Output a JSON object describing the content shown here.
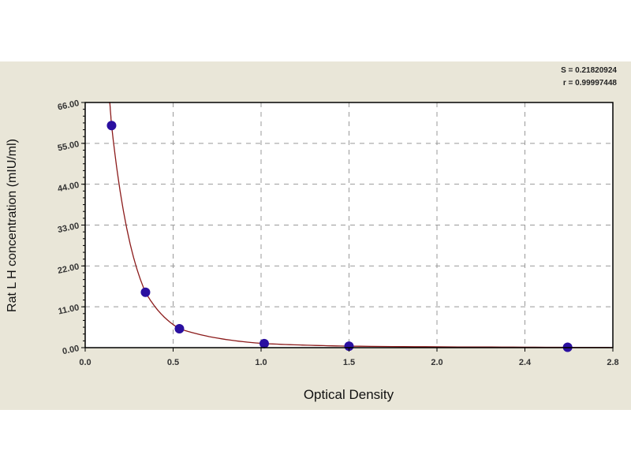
{
  "chart_data": {
    "type": "scatter",
    "xlabel": "Optical Density",
    "ylabel": "Rat L H concentration (mIU/ml)",
    "xlim": [
      0,
      2.8
    ],
    "ylim": [
      0,
      66
    ],
    "x_tick_labels": [
      "0.0",
      "0.5",
      "1.0",
      "1.5",
      "2.0",
      "2.4",
      "2.8"
    ],
    "y_ticks": [
      0,
      11,
      22,
      33,
      44,
      55,
      66
    ],
    "y_tick_labels": [
      "0.00",
      "11.00",
      "22.00",
      "33.00",
      "44.00",
      "55.00",
      "66.00"
    ],
    "grid": true,
    "fit_line": true,
    "points": [
      {
        "x": 0.14,
        "y": 59.8
      },
      {
        "x": 0.32,
        "y": 14.9
      },
      {
        "x": 0.5,
        "y": 5.1
      },
      {
        "x": 0.95,
        "y": 1.1
      },
      {
        "x": 1.4,
        "y": 0.4
      },
      {
        "x": 2.56,
        "y": 0.1
      }
    ],
    "stats": {
      "s": "S = 0.21820924",
      "r": "r = 0.99997448"
    },
    "colors": {
      "point": "#2a0fa0",
      "curve": "#8b1a1a",
      "background": "#e9e6d8",
      "plot": "#ffffff"
    }
  }
}
